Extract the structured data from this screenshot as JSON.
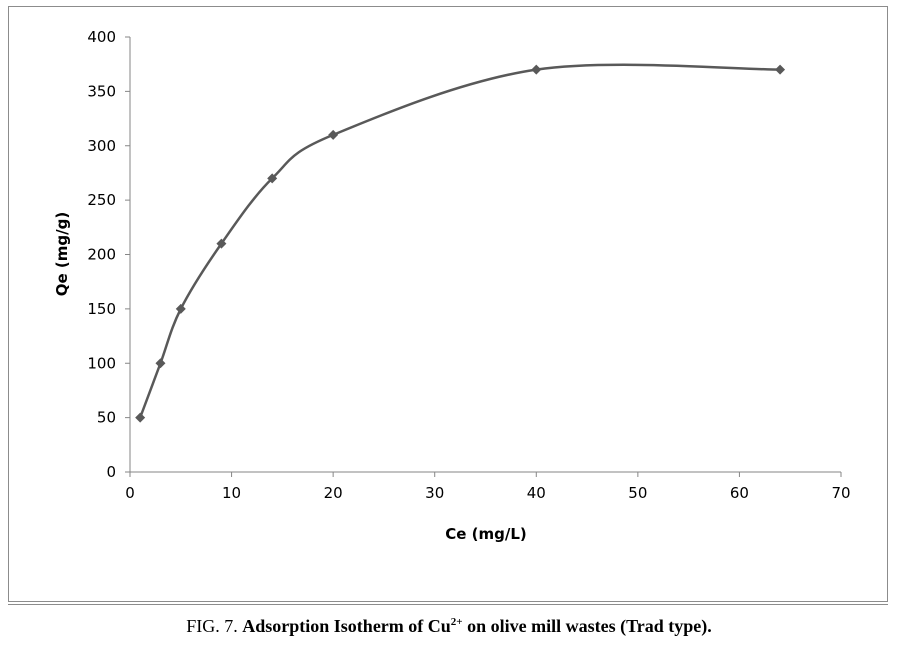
{
  "chart_data": {
    "type": "line",
    "xlabel": "Ce (mg/L)",
    "ylabel": "Qe (mg/g)",
    "xlim": [
      0,
      70
    ],
    "ylim": [
      0,
      400
    ],
    "xticks": [
      0,
      10,
      20,
      30,
      40,
      50,
      60,
      70
    ],
    "yticks": [
      0,
      50,
      100,
      150,
      200,
      250,
      300,
      350,
      400
    ],
    "grid": false,
    "legend": "none",
    "series": [
      {
        "x": [
          1,
          3,
          5,
          9,
          14,
          20,
          40,
          64
        ],
        "y": [
          50,
          100,
          150,
          210,
          270,
          310,
          370,
          370
        ],
        "color": "#595959",
        "marker": "diamond",
        "smooth": true
      }
    ]
  },
  "caption": {
    "prefix": "FIG. 7. ",
    "bold_pre": "Adsorption Isotherm of Cu",
    "superscript": "2+",
    "bold_post": " on olive mill wastes (Trad type)."
  }
}
